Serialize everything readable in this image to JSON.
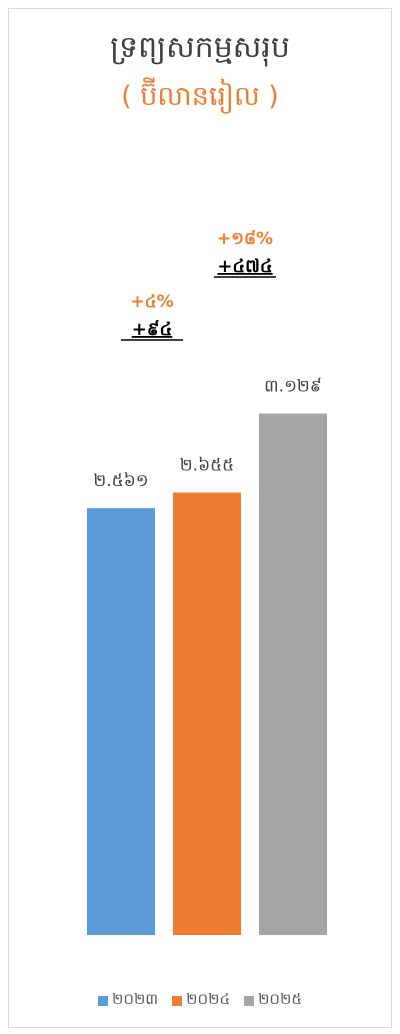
{
  "chart_data": {
    "type": "bar",
    "title": "ទ្រព្យសកម្មសរុប",
    "subtitle": "( ប៊ីលានរៀល )",
    "categories": [
      "២០២៣",
      "២០២៤",
      "២០២៥"
    ],
    "values": [
      2561,
      2655,
      3129
    ],
    "value_labels": [
      "២.៥៦១",
      "២.៦៥៥",
      "៣.១២៩"
    ],
    "colors": [
      "#5b9bd5",
      "#ed7d31",
      "#a5a5a5"
    ],
    "ylim": [
      0,
      3600
    ],
    "grid": false,
    "legend_position": "bottom",
    "annotations": [
      {
        "percent": "+៤%",
        "delta": "+៩៤"
      },
      {
        "percent": "+១៨%",
        "delta": "+៤៧៤"
      }
    ]
  }
}
